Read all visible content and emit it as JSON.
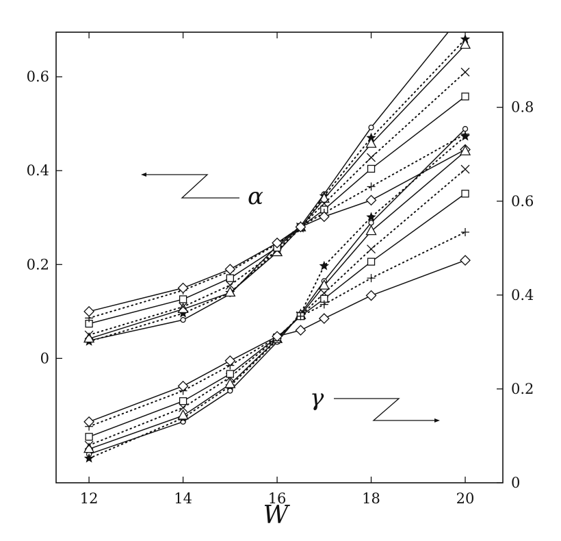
{
  "chart_data": {
    "type": "line",
    "xlabel": "W",
    "x": [
      12,
      14,
      15,
      16,
      16.5,
      17,
      18,
      20
    ],
    "xticks": [
      12,
      14,
      16,
      18,
      20
    ],
    "xlim": [
      11.3,
      20.8
    ],
    "ylim_left": [
      -0.265,
      0.695
    ],
    "yticks_left": [
      "0",
      "0.2",
      "0.4",
      "0.6"
    ],
    "yticks_left_values": [
      0,
      0.2,
      0.4,
      0.6
    ],
    "ylim_right": [
      0,
      0.96
    ],
    "yticks_right": [
      "0",
      "0.2",
      "0.4",
      "0.6",
      "0.8"
    ],
    "yticks_right_values": [
      0,
      0.2,
      0.4,
      0.6,
      0.8
    ],
    "groups": [
      {
        "label": "α",
        "axis": "left",
        "arrow": "left",
        "series": [
          {
            "marker": "circle",
            "line": "solid",
            "values": [
              0.038,
              0.082,
              0.137,
              0.24,
              0.282,
              0.35,
              0.492,
              0.74
            ]
          },
          {
            "marker": "star",
            "line": "dotted",
            "values": [
              0.036,
              0.096,
              0.14,
              0.23,
              0.277,
              0.346,
              0.47,
              0.68
            ]
          },
          {
            "marker": "triangle",
            "line": "solid",
            "values": [
              0.042,
              0.105,
              0.14,
              0.226,
              0.279,
              0.34,
              0.457,
              0.668
            ]
          },
          {
            "marker": "cross",
            "line": "dotted",
            "values": [
              0.05,
              0.11,
              0.156,
              0.23,
              0.28,
              0.33,
              0.428,
              0.61
            ]
          },
          {
            "marker": "square",
            "line": "solid",
            "values": [
              0.074,
              0.126,
              0.171,
              0.236,
              0.28,
              0.317,
              0.404,
              0.558
            ]
          },
          {
            "marker": "plus",
            "line": "dotted",
            "values": [
              0.086,
              0.145,
              0.186,
              0.244,
              0.281,
              0.31,
              0.366,
              0.478
            ]
          },
          {
            "marker": "diamond",
            "line": "solid",
            "values": [
              0.1,
              0.15,
              0.19,
              0.246,
              0.28,
              0.302,
              0.337,
              0.445
            ]
          }
        ]
      },
      {
        "label": "γ",
        "axis": "right",
        "arrow": "right",
        "series": [
          {
            "marker": "circle",
            "line": "solid",
            "values": [
              0.061,
              0.13,
              0.196,
              0.3,
              0.36,
              0.43,
              0.554,
              0.754
            ]
          },
          {
            "marker": "star",
            "line": "dotted",
            "values": [
              0.052,
              0.138,
              0.206,
              0.304,
              0.36,
              0.462,
              0.566,
              0.738
            ]
          },
          {
            "marker": "triangle",
            "line": "solid",
            "values": [
              0.072,
              0.143,
              0.21,
              0.306,
              0.357,
              0.42,
              0.536,
              0.706
            ]
          },
          {
            "marker": "cross",
            "line": "dotted",
            "values": [
              0.08,
              0.16,
              0.225,
              0.308,
              0.356,
              0.404,
              0.498,
              0.668
            ]
          },
          {
            "marker": "square",
            "line": "solid",
            "values": [
              0.098,
              0.174,
              0.232,
              0.31,
              0.355,
              0.392,
              0.471,
              0.616
            ]
          },
          {
            "marker": "plus",
            "line": "dotted",
            "values": [
              0.12,
              0.196,
              0.25,
              0.31,
              0.355,
              0.38,
              0.436,
              0.534
            ]
          },
          {
            "marker": "diamond",
            "line": "solid",
            "values": [
              0.13,
              0.206,
              0.26,
              0.312,
              0.325,
              0.35,
              0.399,
              0.474
            ]
          }
        ]
      }
    ]
  }
}
